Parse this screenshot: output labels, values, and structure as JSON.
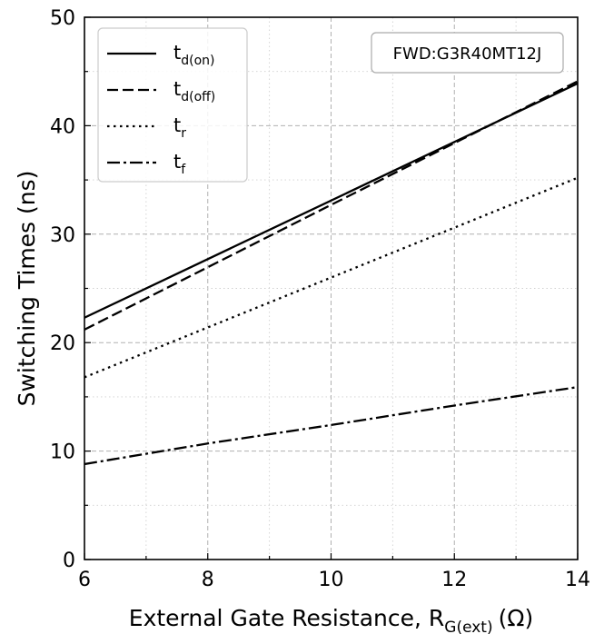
{
  "chart_data": {
    "type": "line",
    "title": "",
    "xlabel": "External Gate Resistance, R",
    "xlabel_sub": "G(ext)",
    "xlabel_unit": "(Ω)",
    "ylabel": "Switching Times (ns)",
    "xlim": [
      6,
      14
    ],
    "ylim": [
      0,
      50
    ],
    "xticks": [
      "6",
      "8",
      "10",
      "12",
      "14"
    ],
    "yticks": [
      "0",
      "10",
      "20",
      "30",
      "40",
      "50"
    ],
    "grid": true,
    "minor_grid": true,
    "legend_position": "top-left",
    "annotation": "FWD:G3R40MT12J",
    "series": [
      {
        "name": "t",
        "sub": "d(on)",
        "style": "solid",
        "x": [
          6,
          14
        ],
        "y": [
          22.3,
          43.9
        ]
      },
      {
        "name": "t",
        "sub": "d(off)",
        "style": "dashed",
        "x": [
          6,
          10,
          14
        ],
        "y": [
          21.2,
          32.7,
          44.1
        ]
      },
      {
        "name": "t",
        "sub": "r",
        "style": "dotted",
        "x": [
          6,
          14
        ],
        "y": [
          16.8,
          35.2
        ]
      },
      {
        "name": "t",
        "sub": "f",
        "style": "dashdot",
        "x": [
          6,
          8,
          10,
          12,
          14
        ],
        "y": [
          8.8,
          10.7,
          12.4,
          14.2,
          15.9
        ]
      }
    ],
    "line_color": "#000000"
  }
}
